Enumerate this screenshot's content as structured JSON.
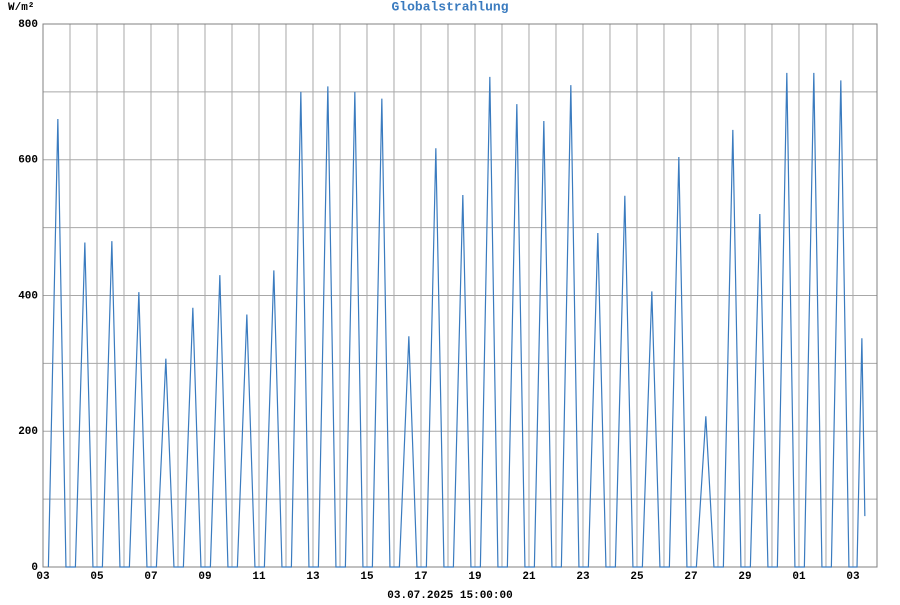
{
  "chart_data": {
    "type": "line",
    "title": "Globalstrahlung",
    "y_unit": "W/m²",
    "x_label": "03.07.2025 15:00:00",
    "x": [
      0.2,
      0.55,
      0.85,
      1.2,
      1.55,
      1.85,
      2.2,
      2.55,
      2.85,
      3.2,
      3.55,
      3.85,
      4.2,
      4.55,
      4.85,
      5.2,
      5.55,
      5.85,
      6.2,
      6.55,
      6.85,
      7.2,
      7.55,
      7.85,
      8.2,
      8.55,
      8.85,
      9.2,
      9.55,
      9.85,
      10.2,
      10.55,
      10.85,
      11.2,
      11.55,
      11.85,
      12.2,
      12.55,
      12.85,
      13.2,
      13.55,
      13.85,
      14.2,
      14.55,
      14.85,
      15.2,
      15.55,
      15.85,
      16.2,
      16.55,
      16.85,
      17.2,
      17.55,
      17.85,
      18.2,
      18.55,
      18.85,
      19.2,
      19.55,
      19.85,
      20.2,
      20.55,
      20.85,
      21.2,
      21.55,
      21.85,
      22.2,
      22.55,
      22.85,
      23.2,
      23.55,
      23.85,
      24.2,
      24.55,
      24.85,
      25.2,
      25.55,
      25.85,
      26.2,
      26.55,
      26.85,
      27.2,
      27.55,
      27.85,
      28.2,
      28.55,
      28.85,
      29.2,
      29.55,
      29.85,
      30.15,
      30.33,
      30.44
    ],
    "series": [
      {
        "name": "Globalstrahlung",
        "color": "#3a7bbf",
        "values": [
          0,
          660,
          0,
          0,
          478,
          0,
          0,
          480,
          0,
          0,
          405,
          0,
          0,
          307,
          0,
          0,
          382,
          0,
          0,
          430,
          0,
          0,
          372,
          0,
          0,
          437,
          0,
          0,
          700,
          0,
          0,
          708,
          0,
          0,
          700,
          0,
          0,
          690,
          0,
          0,
          340,
          0,
          0,
          617,
          0,
          0,
          548,
          0,
          0,
          722,
          0,
          0,
          682,
          0,
          0,
          657,
          0,
          0,
          710,
          0,
          0,
          492,
          0,
          0,
          547,
          0,
          0,
          406,
          0,
          0,
          604,
          0,
          0,
          222,
          0,
          0,
          644,
          0,
          0,
          520,
          0,
          0,
          728,
          0,
          0,
          728,
          0,
          0,
          717,
          0,
          0,
          337,
          75
        ]
      }
    ],
    "xlim": [
      0,
      30.89
    ],
    "xticks": [
      {
        "value": 0,
        "label": "03"
      },
      {
        "value": 2,
        "label": "05"
      },
      {
        "value": 4,
        "label": "07"
      },
      {
        "value": 6,
        "label": "09"
      },
      {
        "value": 8,
        "label": "11"
      },
      {
        "value": 10,
        "label": "13"
      },
      {
        "value": 12,
        "label": "15"
      },
      {
        "value": 14,
        "label": "17"
      },
      {
        "value": 16,
        "label": "19"
      },
      {
        "value": 18,
        "label": "21"
      },
      {
        "value": 20,
        "label": "23"
      },
      {
        "value": 22,
        "label": "25"
      },
      {
        "value": 24,
        "label": "27"
      },
      {
        "value": 26,
        "label": "29"
      },
      {
        "value": 28,
        "label": "01"
      },
      {
        "value": 30,
        "label": "03"
      }
    ],
    "x_minor_ticks": [
      1,
      3,
      5,
      7,
      9,
      11,
      13,
      15,
      17,
      19,
      21,
      23,
      25,
      27,
      29
    ],
    "ylim": [
      0,
      800
    ],
    "yticks": [
      0,
      200,
      400,
      600,
      800
    ],
    "y_minor_ticks": [
      100,
      300,
      500,
      700
    ],
    "grid": true
  }
}
